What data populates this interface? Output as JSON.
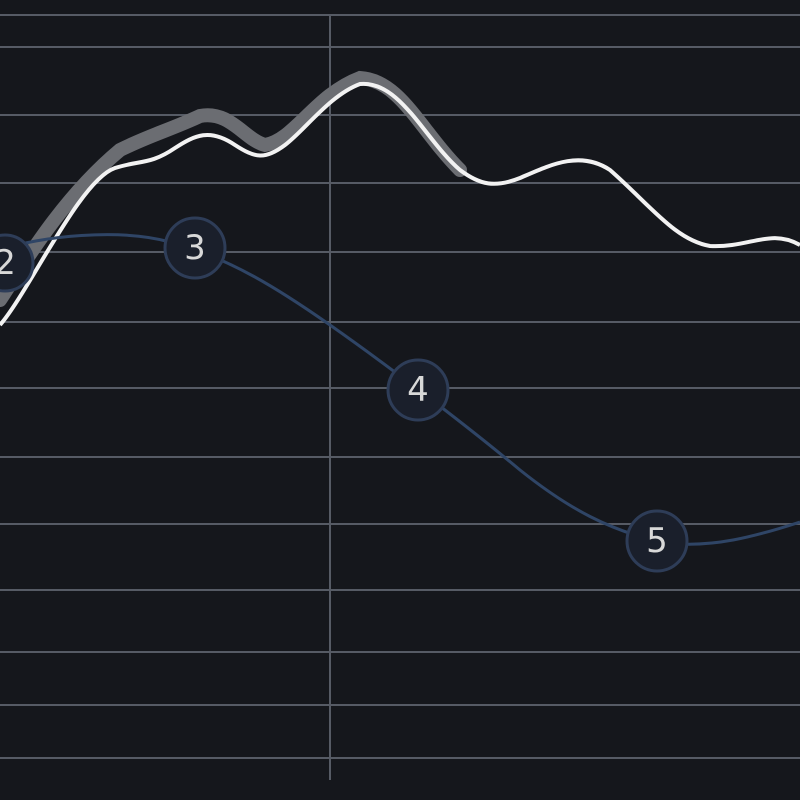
{
  "nodes": [
    {
      "label": "2"
    },
    {
      "label": "3"
    },
    {
      "label": "4"
    },
    {
      "label": "5"
    }
  ]
}
